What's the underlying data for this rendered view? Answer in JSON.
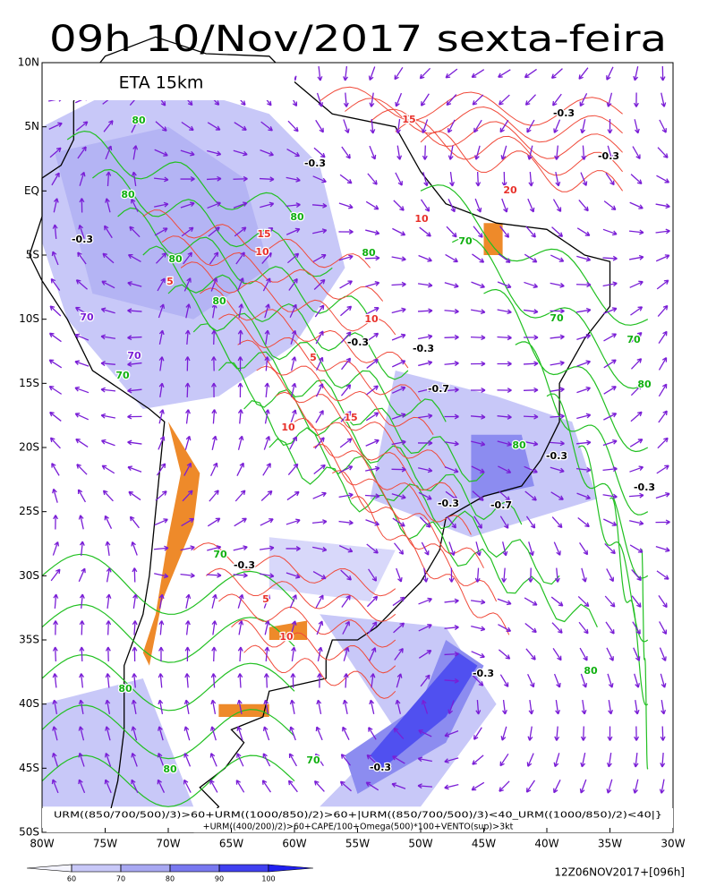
{
  "header": {
    "title": "09h 10/Nov/2017 sexta-feira",
    "model": "ETA 15km"
  },
  "map": {
    "lat_ticks": [
      {
        "value": 10,
        "label": "10N"
      },
      {
        "value": 5,
        "label": "5N"
      },
      {
        "value": 0,
        "label": "EQ"
      },
      {
        "value": -5,
        "label": "5S"
      },
      {
        "value": -10,
        "label": "10S"
      },
      {
        "value": -15,
        "label": "15S"
      },
      {
        "value": -20,
        "label": "20S"
      },
      {
        "value": -25,
        "label": "25S"
      },
      {
        "value": -30,
        "label": "30S"
      },
      {
        "value": -35,
        "label": "35S"
      },
      {
        "value": -40,
        "label": "40S"
      },
      {
        "value": -45,
        "label": "45S"
      },
      {
        "value": -50,
        "label": "50S"
      }
    ],
    "lon_ticks": [
      {
        "value": -80,
        "label": "80W"
      },
      {
        "value": -75,
        "label": "75W"
      },
      {
        "value": -70,
        "label": "70W"
      },
      {
        "value": -65,
        "label": "65W"
      },
      {
        "value": -60,
        "label": "60W"
      },
      {
        "value": -55,
        "label": "55W"
      },
      {
        "value": -50,
        "label": "50W"
      },
      {
        "value": -45,
        "label": "45W"
      },
      {
        "value": -40,
        "label": "40W"
      },
      {
        "value": -35,
        "label": "35W"
      },
      {
        "value": -30,
        "label": "30W"
      }
    ],
    "contour_labels": [
      "80",
      "-0.3",
      "80",
      "-0.3",
      "80",
      "15",
      "10",
      "5",
      "80",
      "70",
      "70",
      "70",
      "-0.7",
      "80",
      "70",
      "80",
      "-0.3",
      "-0.3",
      "10",
      "5",
      "15",
      "10",
      "-0.3",
      "-0.7",
      "-0.3",
      "5",
      "10",
      "70",
      "-0.3",
      "80",
      "-0.3",
      "80",
      "70",
      "80",
      "-0.3",
      "-0.3",
      "80",
      "-0.3",
      "-0.3",
      "20",
      "15",
      "10",
      "70",
      "70",
      "80"
    ],
    "formula": [
      "URM((850/700/500)/3)>60+URM((1000/850)/2)>60+|URM((850/700/500)/3)<40_URM((1000/850)/2)<40|}",
      "+URM((400/200)/2)>60+CAPE/100+Omega(500)*100+VENTO(sup)>3kt"
    ]
  },
  "colorbar": {
    "ticks": [
      60,
      70,
      80,
      90,
      100
    ]
  },
  "footer": {
    "run": "12Z06NOV2017+[096h]"
  }
}
